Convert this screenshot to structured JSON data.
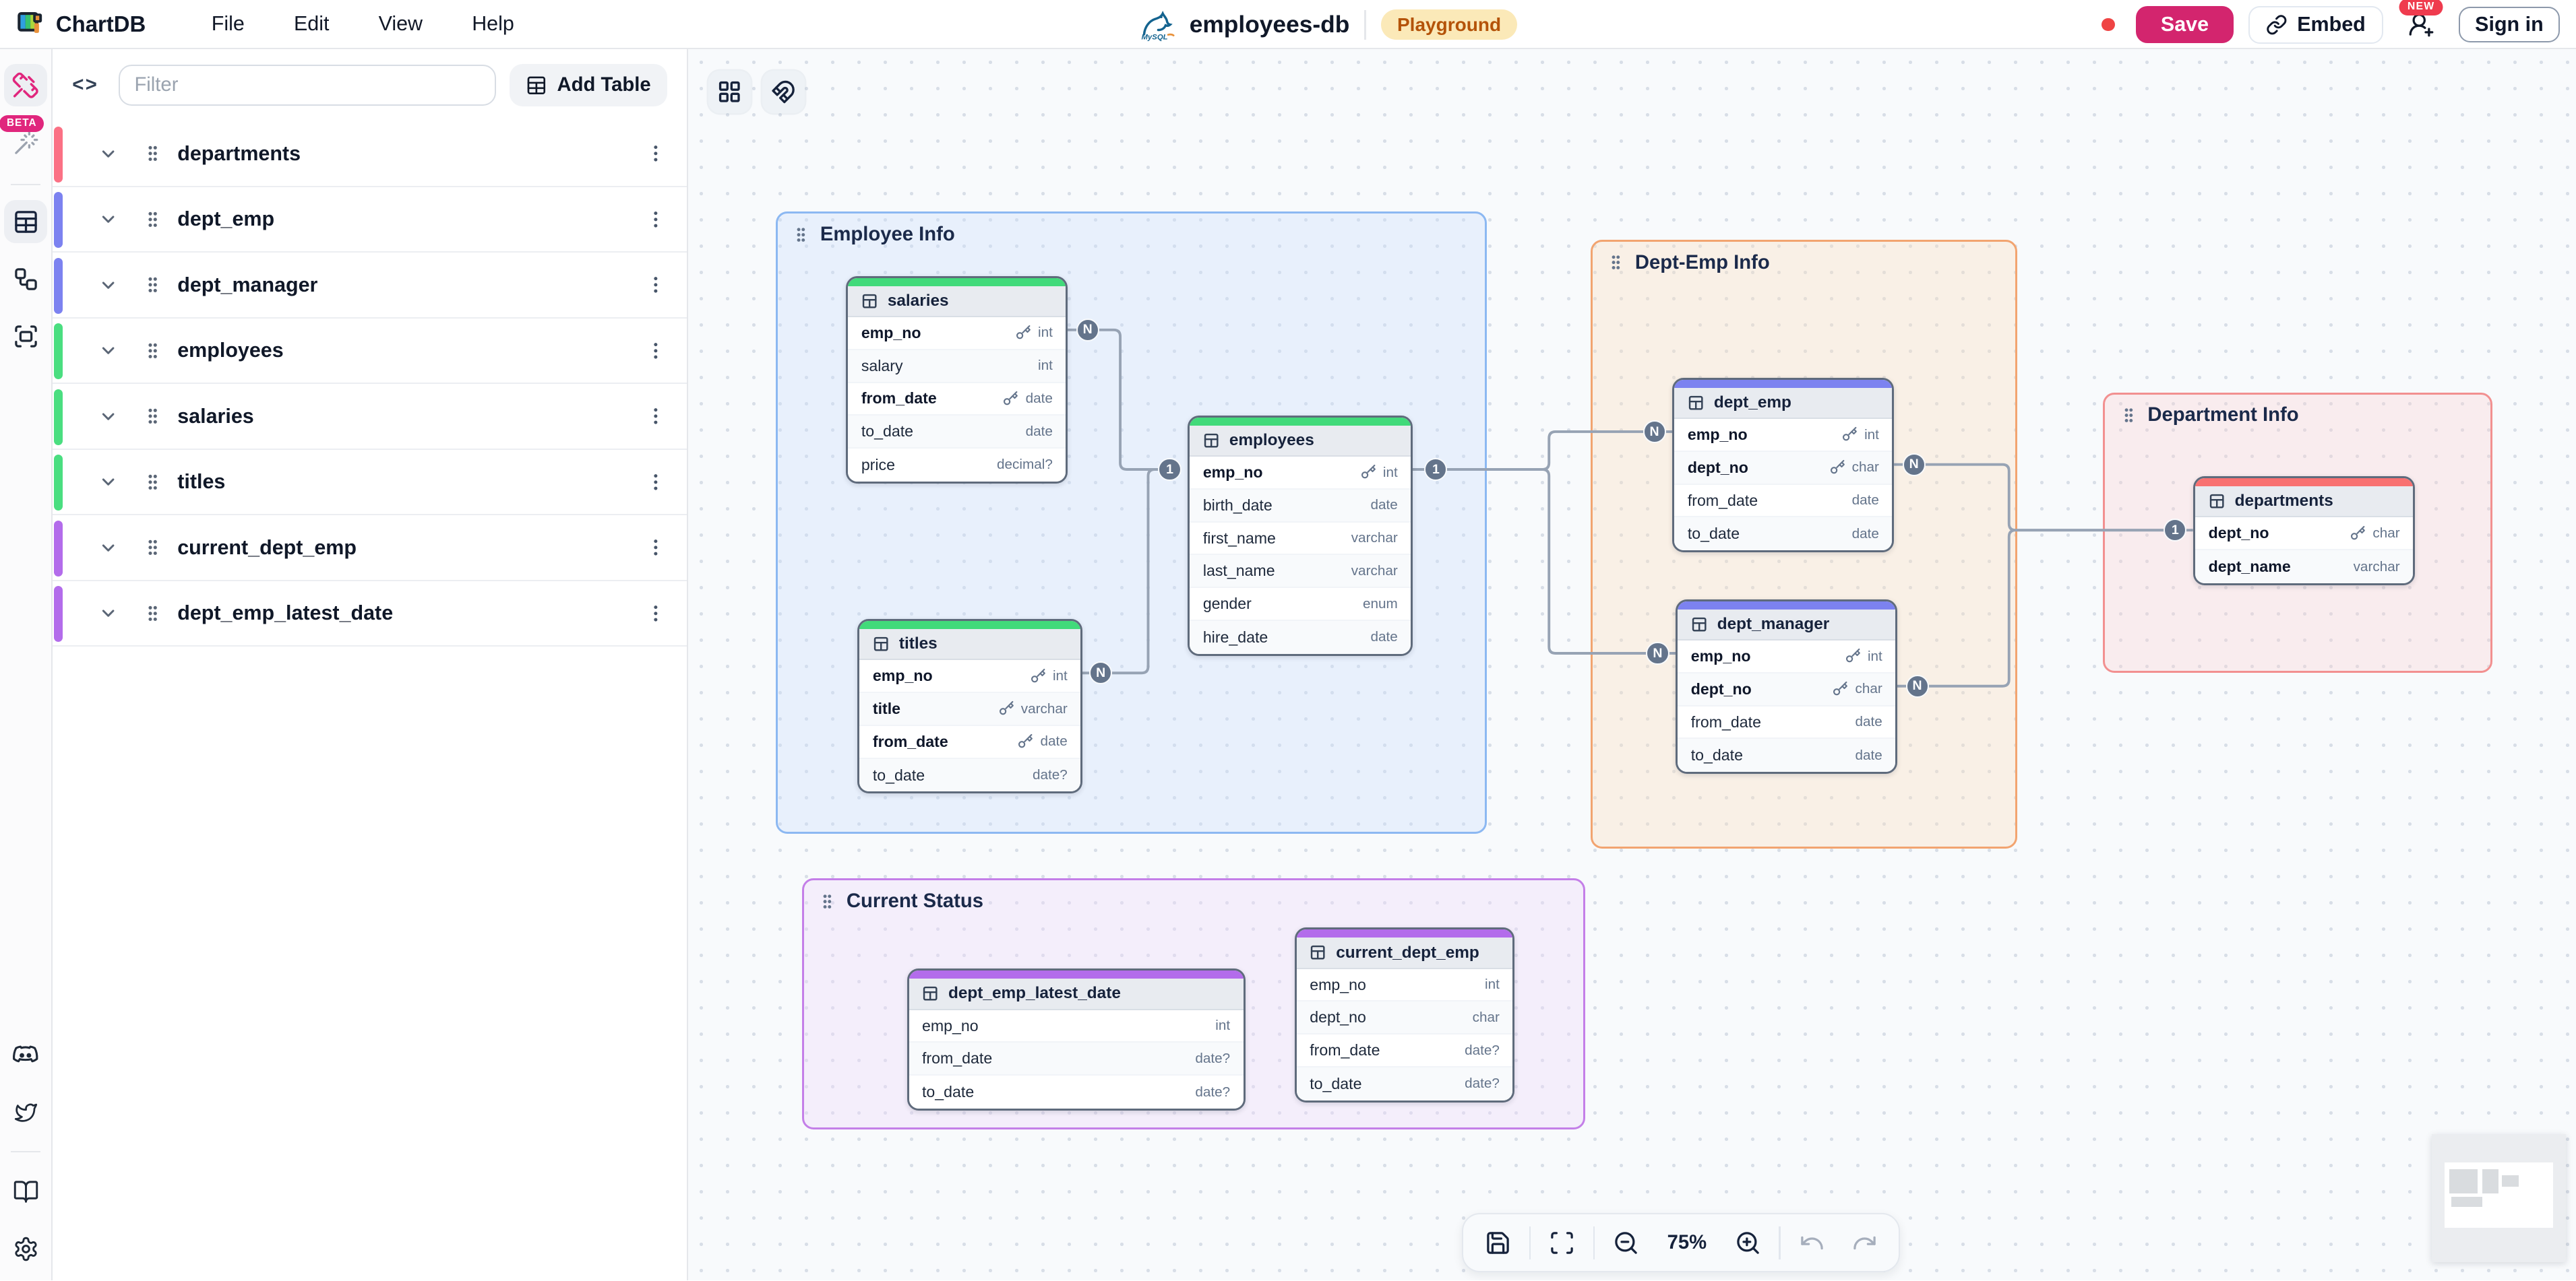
{
  "app": {
    "name": "ChartDB",
    "menus": [
      "File",
      "Edit",
      "View",
      "Help"
    ],
    "diagram_name": "employees-db",
    "db_type": "mysql",
    "env_badge": "Playground",
    "save_label": "Save",
    "embed_label": "Embed",
    "new_badge": "NEW",
    "sign_in_label": "Sign in",
    "beta_badge": "BETA",
    "accent_color": "#d3256e"
  },
  "side_panel": {
    "filter_placeholder": "Filter",
    "add_table_label": "Add Table",
    "tables": [
      {
        "name": "departments",
        "color": "#fb7185"
      },
      {
        "name": "dept_emp",
        "color": "#7c82f0"
      },
      {
        "name": "dept_manager",
        "color": "#7c82f0"
      },
      {
        "name": "employees",
        "color": "#4ade80"
      },
      {
        "name": "salaries",
        "color": "#4ade80"
      },
      {
        "name": "titles",
        "color": "#4ade80"
      },
      {
        "name": "current_dept_emp",
        "color": "#b36ceb"
      },
      {
        "name": "dept_emp_latest_date",
        "color": "#b36ceb"
      }
    ]
  },
  "diagram": {
    "groups": [
      {
        "name": "Employee Info",
        "border": "#8cb8f2"
      },
      {
        "name": "Dept-Emp Info",
        "border": "#f2a470"
      },
      {
        "name": "Department Info",
        "border": "#f29090"
      },
      {
        "name": "Current Status",
        "border": "#c47fe8"
      }
    ],
    "tables": [
      {
        "name": "salaries",
        "color": "#41da7a",
        "fields": [
          {
            "name": "emp_no",
            "type": "int",
            "pk": true
          },
          {
            "name": "salary",
            "type": "int"
          },
          {
            "name": "from_date",
            "type": "date",
            "pk": true
          },
          {
            "name": "to_date",
            "type": "date"
          },
          {
            "name": "price",
            "type": "decimal?"
          }
        ]
      },
      {
        "name": "employees",
        "color": "#41da7a",
        "fields": [
          {
            "name": "emp_no",
            "type": "int",
            "pk": true
          },
          {
            "name": "birth_date",
            "type": "date"
          },
          {
            "name": "first_name",
            "type": "varchar"
          },
          {
            "name": "last_name",
            "type": "varchar"
          },
          {
            "name": "gender",
            "type": "enum"
          },
          {
            "name": "hire_date",
            "type": "date"
          }
        ]
      },
      {
        "name": "titles",
        "color": "#41da7a",
        "fields": [
          {
            "name": "emp_no",
            "type": "int",
            "pk": true
          },
          {
            "name": "title",
            "type": "varchar",
            "pk": true
          },
          {
            "name": "from_date",
            "type": "date",
            "pk": true
          },
          {
            "name": "to_date",
            "type": "date?"
          }
        ]
      },
      {
        "name": "dept_emp",
        "color": "#7c82f0",
        "fields": [
          {
            "name": "emp_no",
            "type": "int",
            "pk": true
          },
          {
            "name": "dept_no",
            "type": "char",
            "pk": true
          },
          {
            "name": "from_date",
            "type": "date"
          },
          {
            "name": "to_date",
            "type": "date"
          }
        ]
      },
      {
        "name": "dept_manager",
        "color": "#7c82f0",
        "fields": [
          {
            "name": "emp_no",
            "type": "int",
            "pk": true
          },
          {
            "name": "dept_no",
            "type": "char",
            "pk": true
          },
          {
            "name": "from_date",
            "type": "date"
          },
          {
            "name": "to_date",
            "type": "date"
          }
        ]
      },
      {
        "name": "departments",
        "color": "#f87171",
        "fields": [
          {
            "name": "dept_no",
            "type": "char",
            "pk": true
          },
          {
            "name": "dept_name",
            "type": "varchar",
            "bold": true
          }
        ]
      },
      {
        "name": "dept_emp_latest_date",
        "color": "#b36ceb",
        "fields": [
          {
            "name": "emp_no",
            "type": "int"
          },
          {
            "name": "from_date",
            "type": "date?"
          },
          {
            "name": "to_date",
            "type": "date?"
          }
        ]
      },
      {
        "name": "current_dept_emp",
        "color": "#b36ceb",
        "fields": [
          {
            "name": "emp_no",
            "type": "int"
          },
          {
            "name": "dept_no",
            "type": "char"
          },
          {
            "name": "from_date",
            "type": "date?"
          },
          {
            "name": "to_date",
            "type": "date?"
          }
        ]
      }
    ],
    "relationships": [
      {
        "source": "salaries.emp_no",
        "target": "employees.emp_no",
        "source_card": "N",
        "target_card": "1"
      },
      {
        "source": "titles.emp_no",
        "target": "employees.emp_no",
        "source_card": "N",
        "target_card": "1"
      },
      {
        "source": "employees.emp_no",
        "target": "dept_emp.emp_no",
        "source_card": "1",
        "target_card": "N"
      },
      {
        "source": "employees.emp_no",
        "target": "dept_manager.emp_no",
        "source_card": "1",
        "target_card": "N"
      },
      {
        "source": "dept_emp.dept_no",
        "target": "departments.dept_no",
        "source_card": "N",
        "target_card": "1"
      },
      {
        "source": "dept_manager.dept_no",
        "target": "departments.dept_no",
        "source_card": "N",
        "target_card": "1"
      }
    ]
  },
  "toolbar": {
    "zoom_level": "75%"
  }
}
